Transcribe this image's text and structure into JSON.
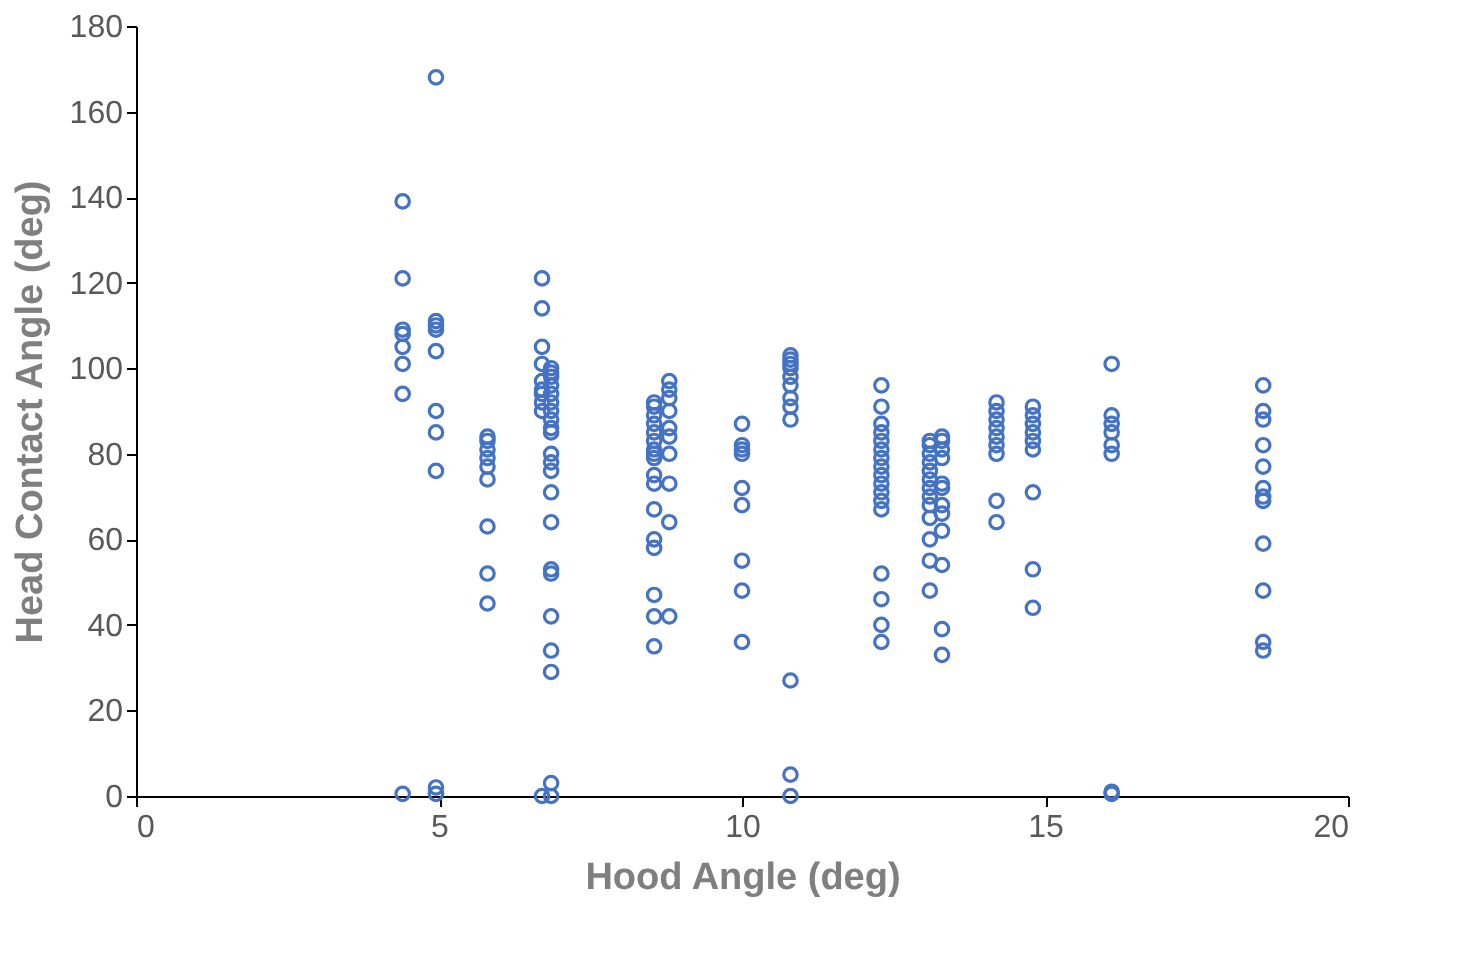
{
  "chart_data": {
    "type": "scatter",
    "xlabel": "Hood Angle (deg)",
    "ylabel": "Head Contact Angle (deg)",
    "xlim": [
      0,
      20
    ],
    "xticks": [
      0,
      5,
      10,
      15,
      20
    ],
    "ylim": [
      0,
      180
    ],
    "yticks": [
      0,
      20,
      40,
      60,
      80,
      100,
      120,
      140,
      160,
      180
    ],
    "grid": false,
    "marker": "circle",
    "series": [
      {
        "color": "#4472c4",
        "x": [
          4.4,
          4.4,
          4.4,
          4.4,
          4.4,
          4.4,
          4.4,
          4.4,
          4.95,
          4.95,
          4.95,
          4.95,
          4.95,
          4.95,
          4.95,
          4.95,
          4.95,
          4.95,
          5.8,
          5.8,
          5.8,
          5.8,
          5.8,
          5.8,
          5.8,
          5.8,
          5.8,
          6.7,
          6.7,
          6.7,
          6.7,
          6.7,
          6.7,
          6.7,
          6.7,
          6.7,
          6.7,
          6.85,
          6.85,
          6.85,
          6.85,
          6.85,
          6.85,
          6.85,
          6.85,
          6.85,
          6.85,
          6.85,
          6.85,
          6.85,
          6.85,
          6.85,
          6.85,
          6.85,
          6.85,
          6.85,
          6.85,
          6.85,
          6.85,
          8.55,
          8.55,
          8.55,
          8.55,
          8.55,
          8.55,
          8.55,
          8.55,
          8.55,
          8.55,
          8.55,
          8.55,
          8.55,
          8.55,
          8.55,
          8.55,
          8.55,
          8.8,
          8.8,
          8.8,
          8.8,
          8.8,
          8.8,
          8.8,
          8.8,
          8.8,
          8.8,
          10,
          10,
          10,
          10,
          10,
          10,
          10,
          10,
          10,
          10.8,
          10.8,
          10.8,
          10.8,
          10.8,
          10.8,
          10.8,
          10.8,
          10.8,
          10.8,
          10.8,
          10.8,
          12.3,
          12.3,
          12.3,
          12.3,
          12.3,
          12.3,
          12.3,
          12.3,
          12.3,
          12.3,
          12.3,
          12.3,
          12.3,
          12.3,
          12.3,
          12.3,
          12.3,
          13.1,
          13.1,
          13.1,
          13.1,
          13.1,
          13.1,
          13.1,
          13.1,
          13.1,
          13.1,
          13.1,
          13.1,
          13.1,
          13.3,
          13.3,
          13.3,
          13.3,
          13.3,
          13.3,
          13.3,
          13.3,
          13.3,
          13.3,
          13.3,
          13.3,
          14.2,
          14.2,
          14.2,
          14.2,
          14.2,
          14.2,
          14.2,
          14.2,
          14.2,
          14.8,
          14.8,
          14.8,
          14.8,
          14.8,
          14.8,
          14.8,
          14.8,
          14.8,
          16.1,
          16.1,
          16.1,
          16.1,
          16.1,
          16.1,
          16.1,
          16.1,
          18.6,
          18.6,
          18.6,
          18.6,
          18.6,
          18.6,
          18.6,
          18.6,
          18.6,
          18.6,
          18.6,
          18.6
        ],
        "values": [
          139,
          121,
          109,
          108,
          105,
          101,
          94,
          0.5,
          168,
          111,
          110,
          109,
          104,
          90,
          85,
          76,
          2,
          0.5,
          84,
          83,
          81,
          79,
          77,
          74,
          63,
          52,
          45,
          121,
          114,
          105,
          101,
          97,
          95,
          94,
          92,
          90,
          0,
          100,
          99,
          98,
          96,
          94,
          92,
          90,
          88,
          86,
          85,
          80,
          78,
          76,
          71,
          64,
          52,
          53,
          42,
          34,
          29,
          3,
          0,
          92,
          91,
          89,
          87,
          85,
          83,
          81,
          80,
          79,
          75,
          73,
          67,
          60,
          58,
          47,
          42,
          35,
          97,
          95,
          93,
          90,
          86,
          84,
          80,
          73,
          64,
          42,
          87,
          82,
          81,
          80,
          72,
          68,
          55,
          48,
          36,
          103,
          102,
          101,
          100,
          98,
          96,
          93,
          91,
          88,
          27,
          5,
          0,
          96,
          91,
          87,
          85,
          83,
          81,
          79,
          77,
          75,
          73,
          71,
          69,
          67,
          52,
          46,
          40,
          36,
          83,
          82,
          80,
          78,
          76,
          74,
          72,
          70,
          68,
          65,
          60,
          55,
          48,
          84,
          83,
          81,
          79,
          73,
          72,
          68,
          66,
          62,
          54,
          39,
          33,
          92,
          90,
          88,
          86,
          84,
          82,
          80,
          69,
          64,
          91,
          89,
          87,
          85,
          83,
          81,
          71,
          53,
          44,
          101,
          89,
          87,
          85,
          82,
          80,
          1,
          0.5,
          96,
          90,
          88,
          82,
          77,
          72,
          70,
          69,
          59,
          48,
          36,
          34
        ]
      }
    ]
  }
}
